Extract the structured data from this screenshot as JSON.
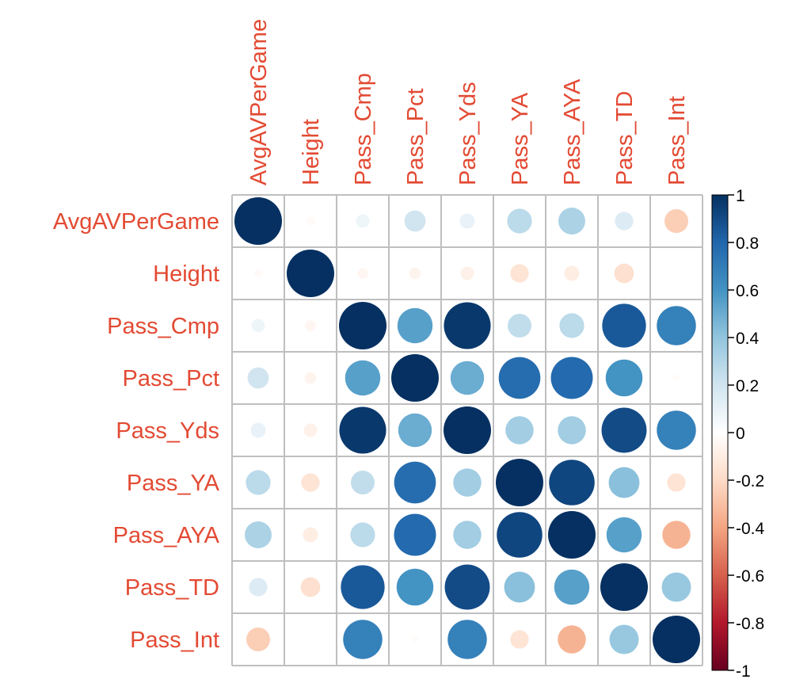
{
  "chart_data": {
    "type": "heatmap",
    "variables": [
      "AvgAVPerGame",
      "Height",
      "Pass_Cmp",
      "Pass_Pct",
      "Pass_Yds",
      "Pass_YA",
      "Pass_AYA",
      "Pass_TD",
      "Pass_Int"
    ],
    "matrix": [
      [
        1.0,
        -0.03,
        0.08,
        0.2,
        0.1,
        0.27,
        0.32,
        0.15,
        -0.25
      ],
      [
        -0.03,
        1.0,
        -0.05,
        -0.06,
        -0.08,
        -0.15,
        -0.1,
        -0.17,
        0.0
      ],
      [
        0.08,
        -0.05,
        1.0,
        0.55,
        0.97,
        0.25,
        0.27,
        0.85,
        0.68
      ],
      [
        0.2,
        -0.06,
        0.55,
        1.0,
        0.5,
        0.77,
        0.78,
        0.6,
        -0.02
      ],
      [
        0.1,
        -0.08,
        0.97,
        0.5,
        1.0,
        0.35,
        0.35,
        0.9,
        0.68
      ],
      [
        0.27,
        -0.15,
        0.25,
        0.77,
        0.35,
        1.0,
        0.92,
        0.42,
        -0.15
      ],
      [
        0.32,
        -0.1,
        0.27,
        0.78,
        0.35,
        0.92,
        1.0,
        0.55,
        -0.35
      ],
      [
        0.15,
        -0.17,
        0.85,
        0.6,
        0.9,
        0.42,
        0.55,
        1.0,
        0.38
      ],
      [
        -0.25,
        0.0,
        0.68,
        -0.02,
        0.68,
        -0.15,
        -0.35,
        0.38,
        1.0
      ]
    ],
    "colorbar": {
      "range": [
        -1,
        1
      ],
      "ticks": [
        "1",
        "0.8",
        "0.6",
        "0.4",
        "0.2",
        "0",
        "-0.2",
        "-0.4",
        "-0.6",
        "-0.8",
        "-1"
      ],
      "colors": [
        "#67001f",
        "#b2182b",
        "#d6604d",
        "#f4a582",
        "#fddbc7",
        "#ffffff",
        "#d1e5f0",
        "#92c5de",
        "#4393c3",
        "#2166ac",
        "#053061"
      ]
    },
    "grid": true,
    "legend_placement": "right"
  }
}
